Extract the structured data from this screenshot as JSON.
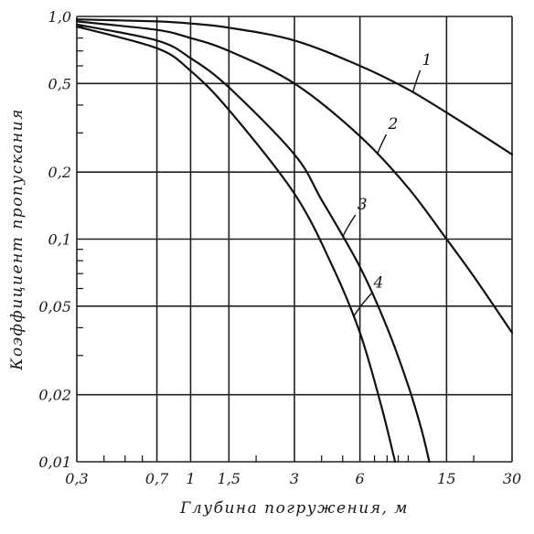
{
  "chart_data": {
    "type": "line",
    "title": "",
    "xlabel": "Глубина погружения, м",
    "ylabel": "Коэффициент пропускания",
    "x_scale": "log",
    "y_scale": "log",
    "xlim": [
      0.3,
      30
    ],
    "ylim": [
      0.01,
      1.0
    ],
    "grid": true,
    "legend": "none",
    "x_ticks": [
      0.3,
      0.7,
      1,
      1.5,
      3,
      6,
      15,
      30
    ],
    "x_tick_labels": [
      "0,3",
      "0,7",
      "1",
      "1,5",
      "3",
      "6",
      "15",
      "30"
    ],
    "y_ticks": [
      1.0,
      0.5,
      0.2,
      0.1,
      0.05,
      0.02,
      0.01
    ],
    "y_tick_labels": [
      "1,0",
      "0,5",
      "0,2",
      "0,1",
      "0,05",
      "0,02",
      "0,01"
    ],
    "series": [
      {
        "name": "1",
        "x": [
          0.3,
          0.7,
          1,
          1.5,
          3,
          6,
          10,
          15,
          20,
          30
        ],
        "y": [
          0.97,
          0.95,
          0.93,
          0.89,
          0.78,
          0.6,
          0.47,
          0.37,
          0.31,
          0.24
        ]
      },
      {
        "name": "2",
        "x": [
          0.3,
          0.7,
          1,
          1.5,
          3,
          6,
          10,
          15,
          20,
          30
        ],
        "y": [
          0.95,
          0.87,
          0.8,
          0.7,
          0.5,
          0.29,
          0.17,
          0.1,
          0.068,
          0.038
        ]
      },
      {
        "name": "3",
        "x": [
          0.3,
          0.7,
          1,
          1.5,
          3,
          4,
          6,
          8,
          10,
          11.5,
          12.5
        ],
        "y": [
          0.92,
          0.78,
          0.65,
          0.48,
          0.24,
          0.15,
          0.075,
          0.04,
          0.022,
          0.014,
          0.01
        ]
      },
      {
        "name": "4",
        "x": [
          0.3,
          0.7,
          1,
          1.5,
          3,
          4.5,
          6,
          7.5,
          8.7
        ],
        "y": [
          0.9,
          0.72,
          0.57,
          0.38,
          0.16,
          0.075,
          0.038,
          0.018,
          0.01
        ]
      }
    ]
  }
}
